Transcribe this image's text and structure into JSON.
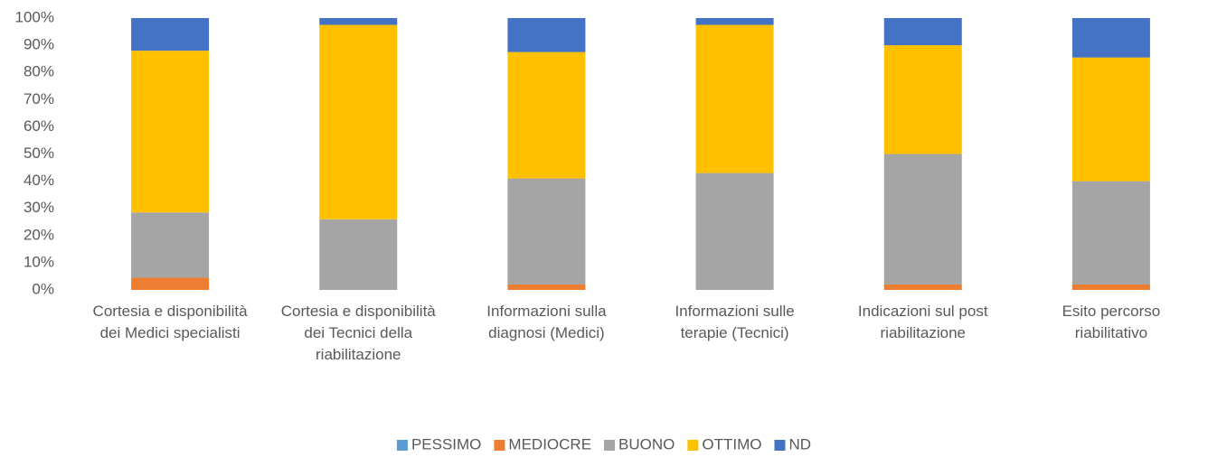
{
  "chart_data": {
    "type": "stacked_bar_100",
    "categories": [
      "Cortesia e disponibilità dei Medici specialisti",
      "Cortesia e disponibilità dei Tecnici della riabilitazione",
      "Informazioni sulla diagnosi (Medici)",
      "Informazioni sulle terapie (Tecnici)",
      "Indicazioni sul post riabilitazione",
      "Esito percorso riabilitativo"
    ],
    "series": [
      {
        "name": "PESSIMO",
        "color": "#5b9bd5",
        "values": [
          0,
          0,
          0,
          0,
          0,
          0
        ]
      },
      {
        "name": "MEDIOCRE",
        "color": "#ed7d31",
        "values": [
          4.5,
          0,
          2,
          0,
          2,
          2
        ]
      },
      {
        "name": "BUONO",
        "color": "#a5a5a5",
        "values": [
          24,
          26,
          39,
          43,
          48,
          38
        ]
      },
      {
        "name": "OTTIMO",
        "color": "#ffc000",
        "values": [
          59.5,
          71.5,
          46.5,
          54.5,
          40,
          45.5
        ]
      },
      {
        "name": "ND",
        "color": "#4472c4",
        "values": [
          12,
          2.5,
          12.5,
          2.5,
          10,
          14.5
        ]
      }
    ],
    "ylim": [
      0,
      100
    ],
    "yticks": [
      {
        "value": 0,
        "label": "0%"
      },
      {
        "value": 10,
        "label": "10%"
      },
      {
        "value": 20,
        "label": "20%"
      },
      {
        "value": 30,
        "label": "30%"
      },
      {
        "value": 40,
        "label": "40%"
      },
      {
        "value": 50,
        "label": "50%"
      },
      {
        "value": 60,
        "label": "60%"
      },
      {
        "value": 70,
        "label": "70%"
      },
      {
        "value": 80,
        "label": "80%"
      },
      {
        "value": 90,
        "label": "90%"
      },
      {
        "value": 100,
        "label": "100%"
      }
    ],
    "legend": "bottom"
  }
}
